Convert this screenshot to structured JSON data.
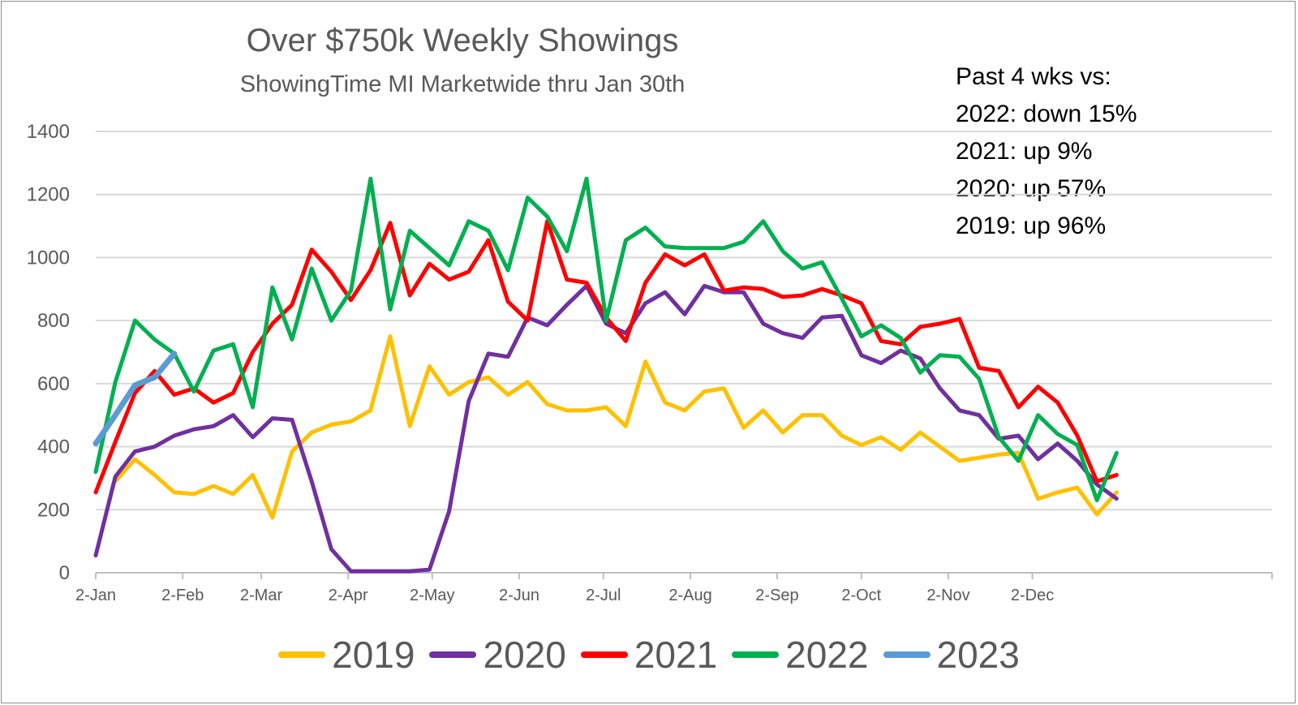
{
  "chart_data": {
    "type": "line",
    "title": "Over $750k Weekly Showings",
    "subtitle": "ShowingTime  MI Marketwide thru Jan 30th",
    "annotations": [
      "Past 4 wks vs:",
      "2022: down  15%",
      "2021: up 9%",
      "2020: up 57%",
      "2019: up  96%"
    ],
    "x_tick_labels": [
      "2-Jan",
      "2-Feb",
      "2-Mar",
      "2-Apr",
      "2-May",
      "2-Jun",
      "2-Jul",
      "2-Aug",
      "2-Sep",
      "2-Oct",
      "2-Nov",
      "2-Dec"
    ],
    "x_tick_weeks": [
      0,
      4.43,
      8.43,
      12.86,
      17.14,
      21.57,
      25.86,
      30.29,
      34.71,
      39,
      43.43,
      47.71
    ],
    "y_ticks": [
      0,
      200,
      400,
      600,
      800,
      1000,
      1200,
      1400
    ],
    "ylim": [
      0,
      1400
    ],
    "xlabel": "",
    "ylabel": "",
    "grid": true,
    "legend_position": "bottom",
    "series": [
      {
        "name": "2019",
        "color": "#FFC000",
        "x_start_week": 1,
        "values": [
          290,
          360,
          310,
          255,
          250,
          275,
          250,
          310,
          175,
          385,
          445,
          470,
          480,
          515,
          750,
          465,
          655,
          565,
          605,
          620,
          565,
          605,
          535,
          515,
          515,
          525,
          465,
          670,
          540,
          515,
          575,
          585,
          460,
          515,
          445,
          500,
          500,
          435,
          405,
          430,
          390,
          445,
          400,
          355,
          365,
          375,
          380,
          235,
          255,
          270,
          185,
          255
        ]
      },
      {
        "name": "2020",
        "color": "#7030A0",
        "x_start_week": 0,
        "values": [
          55,
          305,
          385,
          400,
          435,
          455,
          465,
          500,
          430,
          490,
          485,
          290,
          75,
          5,
          5,
          5,
          5,
          10,
          195,
          545,
          695,
          685,
          810,
          785,
          850,
          910,
          790,
          760,
          855,
          890,
          820,
          910,
          890,
          890,
          790,
          760,
          745,
          810,
          815,
          690,
          665,
          705,
          680,
          585,
          515,
          500,
          425,
          435,
          360,
          410,
          355,
          280,
          235
        ]
      },
      {
        "name": "2021",
        "color": "#FF0000",
        "x_start_week": 0,
        "values": [
          255,
          415,
          570,
          640,
          565,
          585,
          540,
          570,
          700,
          790,
          850,
          1025,
          955,
          865,
          960,
          1110,
          880,
          980,
          930,
          955,
          1055,
          860,
          800,
          1115,
          930,
          920,
          810,
          735,
          920,
          1010,
          975,
          1010,
          895,
          905,
          900,
          875,
          880,
          900,
          880,
          855,
          735,
          725,
          780,
          790,
          805,
          650,
          640,
          525,
          590,
          540,
          435,
          290,
          310
        ]
      },
      {
        "name": "2022",
        "color": "#00B050",
        "x_start_week": 0,
        "values": [
          320,
          605,
          800,
          740,
          695,
          575,
          705,
          725,
          525,
          905,
          740,
          965,
          800,
          895,
          1250,
          835,
          1085,
          1030,
          975,
          1115,
          1085,
          960,
          1190,
          1130,
          1020,
          1250,
          800,
          1055,
          1095,
          1035,
          1030,
          1030,
          1030,
          1050,
          1115,
          1020,
          965,
          985,
          870,
          750,
          785,
          745,
          635,
          690,
          685,
          615,
          430,
          355,
          500,
          440,
          405,
          230,
          380
        ]
      },
      {
        "name": "2023",
        "color": "#5B9BD5",
        "x_start_week": 0,
        "values": [
          410,
          500,
          595,
          620,
          695
        ]
      }
    ]
  }
}
